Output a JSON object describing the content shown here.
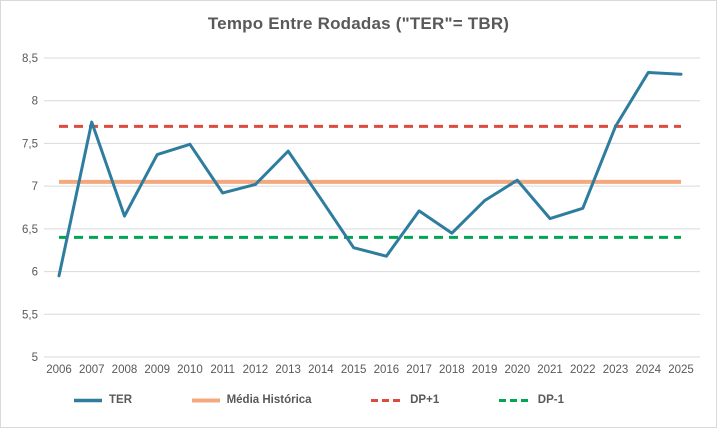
{
  "chart_title": "Tempo Entre Rodadas (\"TER\"= TBR)",
  "colors": {
    "ter": "#2e7d9e",
    "media": "#f3a97d",
    "dp_plus": "#de4a3d",
    "dp_minus": "#00a651",
    "grid": "#d9d9d9",
    "text": "#595959"
  },
  "chart_data": {
    "type": "line",
    "title": "Tempo Entre Rodadas (\"TER\"= TBR)",
    "categories": [
      "2006",
      "2007",
      "2008",
      "2009",
      "2010",
      "2011",
      "2012",
      "2013",
      "2014",
      "2015",
      "2016",
      "2017",
      "2018",
      "2019",
      "2020",
      "2021",
      "2022",
      "2023",
      "2024",
      "2025"
    ],
    "series": [
      {
        "name": "TER",
        "kind": "data-line",
        "dashed": false,
        "color": "#2e7d9e",
        "values": [
          5.95,
          7.75,
          6.65,
          7.37,
          7.49,
          6.92,
          7.02,
          7.41,
          6.85,
          6.28,
          6.18,
          6.71,
          6.45,
          6.83,
          7.07,
          6.62,
          6.74,
          7.7,
          8.33,
          8.31
        ]
      },
      {
        "name": "Média Histórica",
        "kind": "constant-line",
        "dashed": false,
        "color": "#f3a97d",
        "value": 7.05
      },
      {
        "name": "DP+1",
        "kind": "constant-line",
        "dashed": true,
        "color": "#de4a3d",
        "value": 7.7
      },
      {
        "name": "DP-1",
        "kind": "constant-line",
        "dashed": true,
        "color": "#00a651",
        "value": 6.4
      }
    ],
    "xlabel": "",
    "ylabel": "",
    "ylim": [
      5,
      8.5
    ],
    "ytick_step": 0.5,
    "ytick_labels": [
      "5",
      "5,5",
      "6",
      "6,5",
      "7",
      "7,5",
      "8",
      "8,5"
    ],
    "grid": "horizontal",
    "legend_position": "bottom"
  }
}
